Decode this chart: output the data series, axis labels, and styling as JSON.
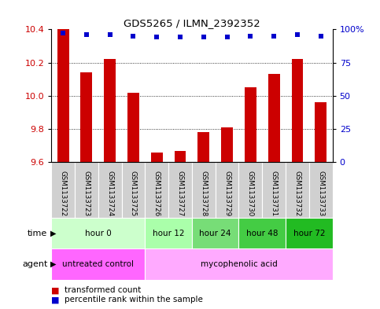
{
  "title": "GDS5265 / ILMN_2392352",
  "samples": [
    "GSM1133722",
    "GSM1133723",
    "GSM1133724",
    "GSM1133725",
    "GSM1133726",
    "GSM1133727",
    "GSM1133728",
    "GSM1133729",
    "GSM1133730",
    "GSM1133731",
    "GSM1133732",
    "GSM1133733"
  ],
  "bar_values": [
    10.4,
    10.14,
    10.22,
    10.02,
    9.66,
    9.67,
    9.78,
    9.81,
    10.05,
    10.13,
    10.22,
    9.96
  ],
  "percentile_values": [
    97,
    96,
    96,
    95,
    94,
    94,
    94,
    94,
    95,
    95,
    96,
    95
  ],
  "ylim_left": [
    9.6,
    10.4
  ],
  "ylim_right": [
    0,
    100
  ],
  "yticks_left": [
    9.6,
    9.8,
    10.0,
    10.2,
    10.4
  ],
  "yticks_right": [
    0,
    25,
    50,
    75,
    100
  ],
  "ytick_labels_right": [
    "0",
    "25",
    "50",
    "75",
    "100%"
  ],
  "bar_color": "#cc0000",
  "dot_color": "#0000cc",
  "bar_bottom": 9.6,
  "sample_box_color": "#d0d0d0",
  "time_groups": [
    {
      "label": "hour 0",
      "start": 0,
      "end": 4,
      "color": "#ccffcc"
    },
    {
      "label": "hour 12",
      "start": 4,
      "end": 6,
      "color": "#aaffaa"
    },
    {
      "label": "hour 24",
      "start": 6,
      "end": 8,
      "color": "#77dd77"
    },
    {
      "label": "hour 48",
      "start": 8,
      "end": 10,
      "color": "#44cc44"
    },
    {
      "label": "hour 72",
      "start": 10,
      "end": 12,
      "color": "#22bb22"
    }
  ],
  "agent_groups": [
    {
      "label": "untreated control",
      "start": 0,
      "end": 4,
      "color": "#ff66ff"
    },
    {
      "label": "mycophenolic acid",
      "start": 4,
      "end": 12,
      "color": "#ffaaff"
    }
  ],
  "legend_bar_label": "transformed count",
  "legend_dot_label": "percentile rank within the sample"
}
